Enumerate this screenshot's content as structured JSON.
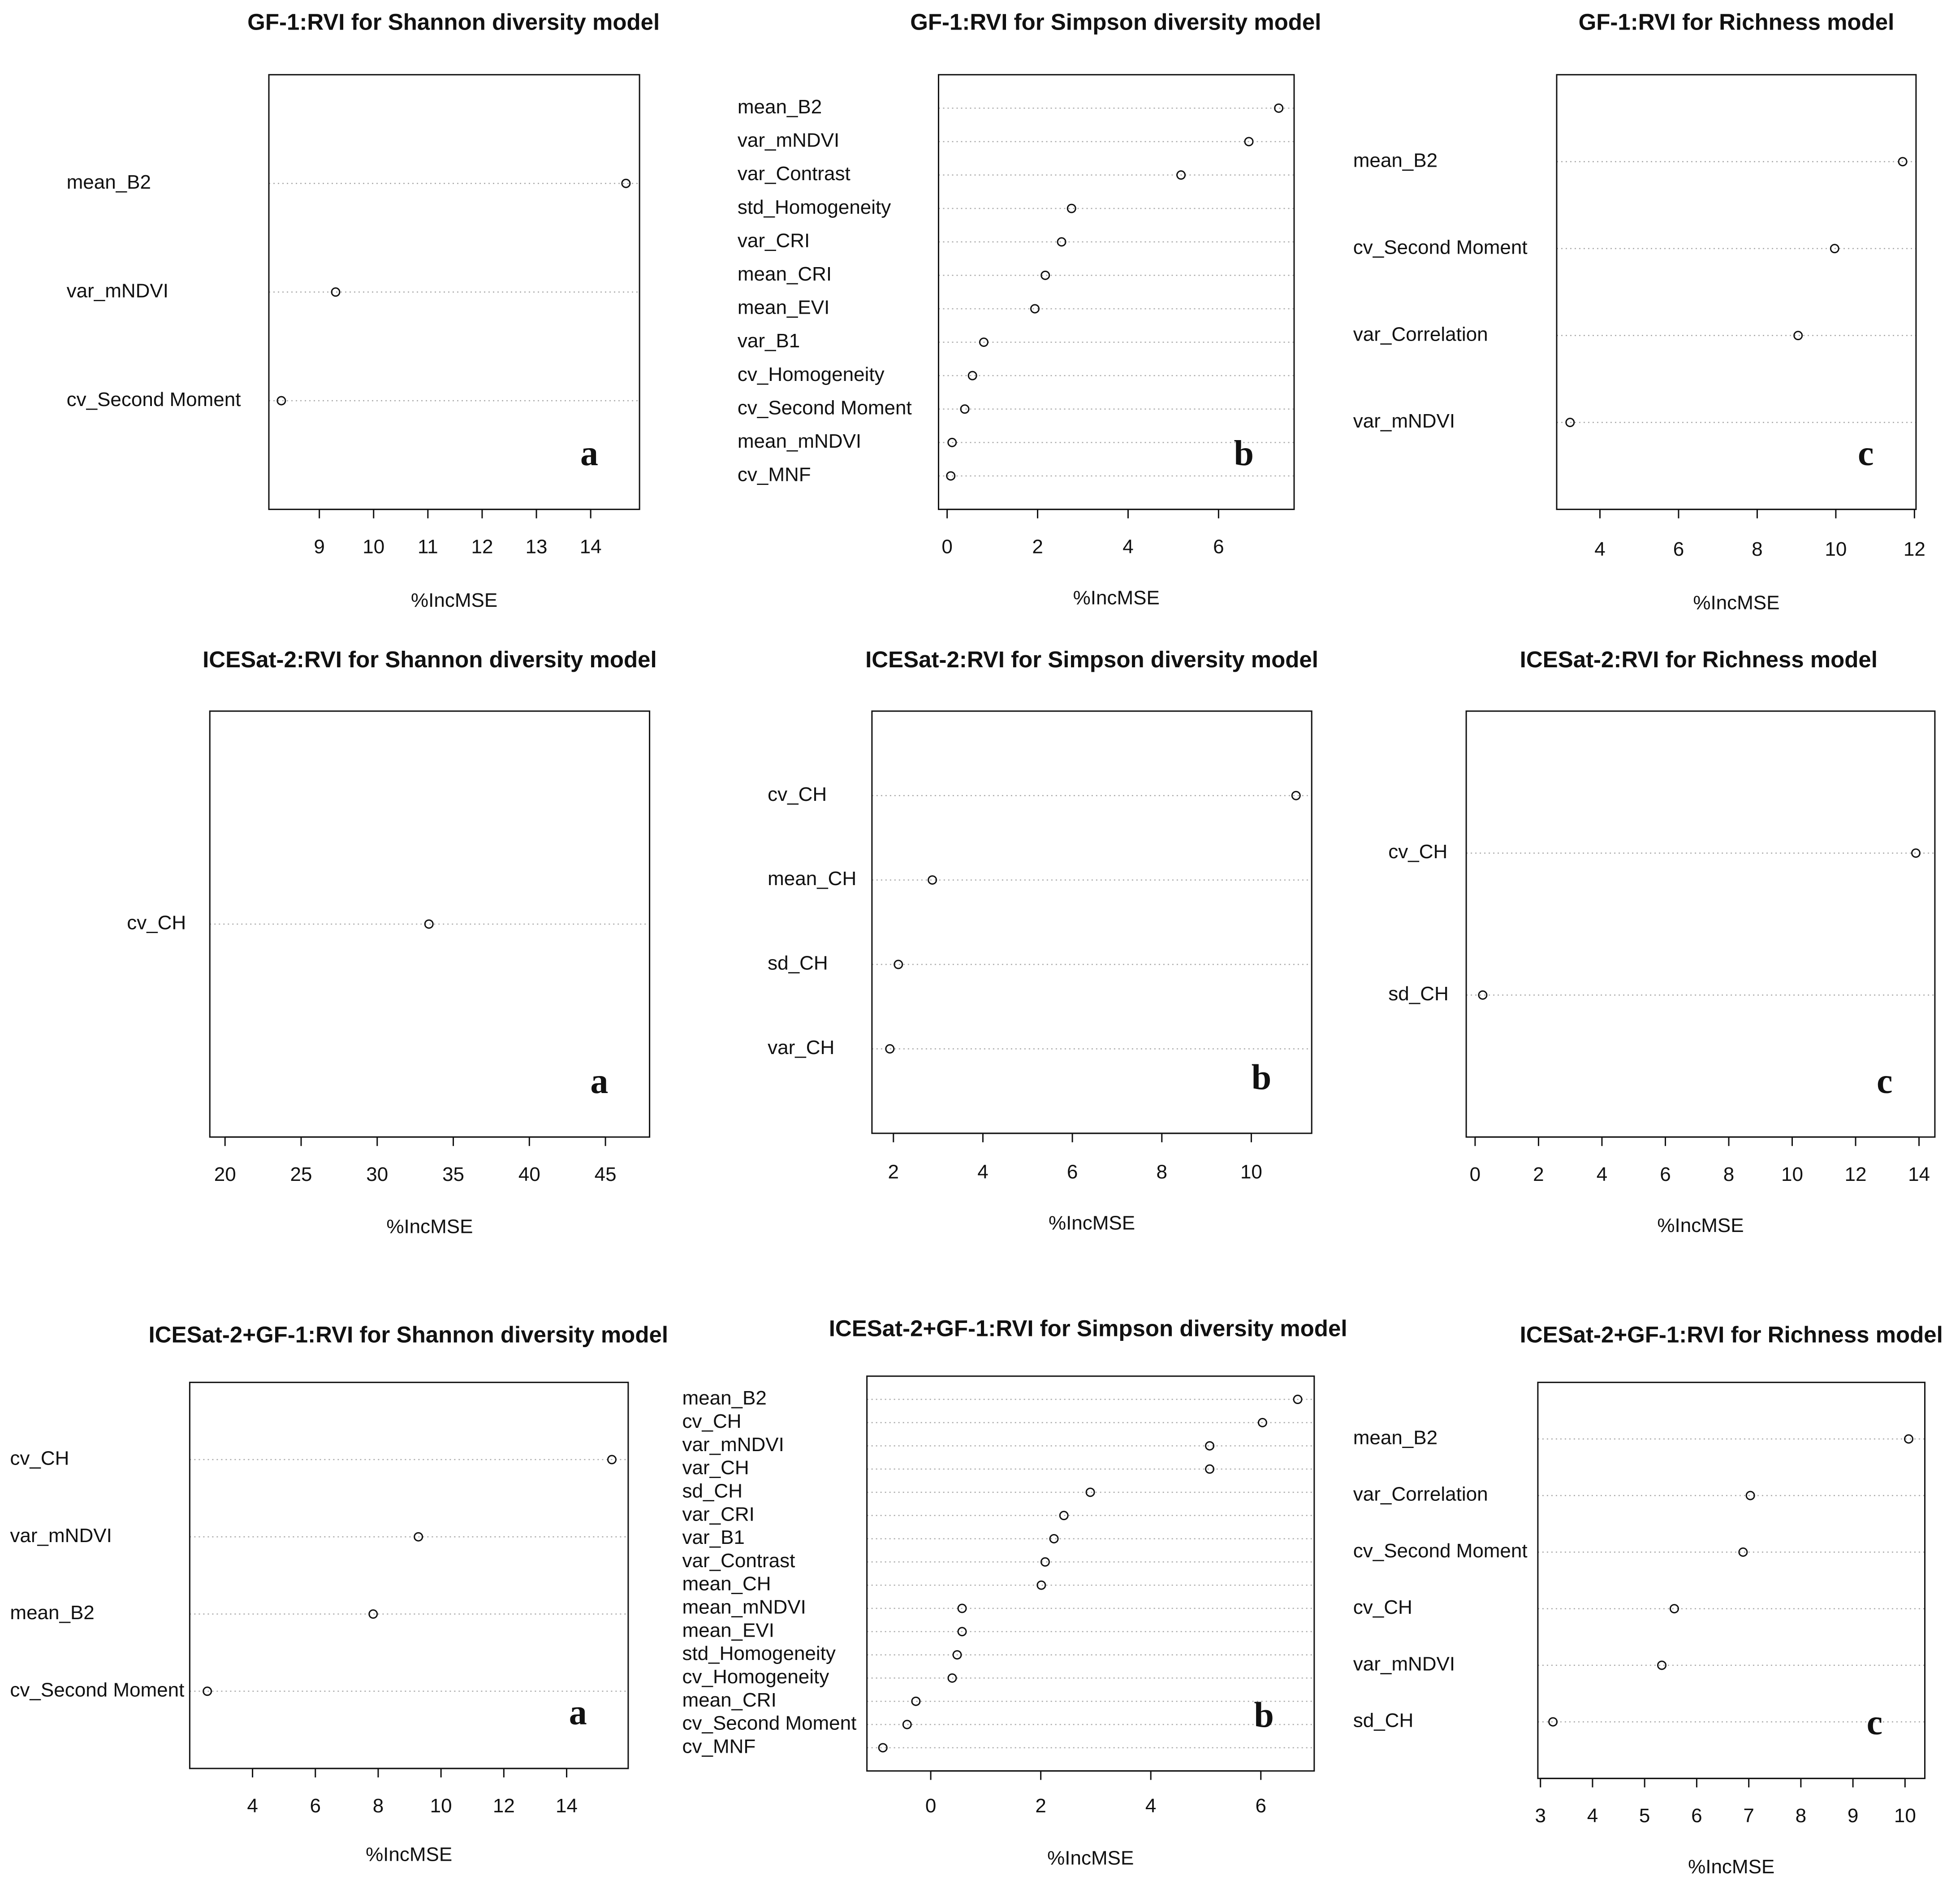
{
  "chart_data": [
    {
      "type": "dot",
      "title": "GF-1:RVI for Shannon diversity model",
      "annotation": "a",
      "xlabel": "%IncMSE",
      "categories": [
        "mean_B2",
        "var_mNDVI",
        "cv_Second Moment"
      ],
      "values": [
        14.65,
        9.3,
        8.3
      ],
      "xlim": [
        8.07,
        14.9
      ],
      "xticks": [
        9,
        10,
        11,
        12,
        13,
        14
      ]
    },
    {
      "type": "dot",
      "title": "GF-1:RVI for Simpson diversity model",
      "annotation": "b",
      "xlabel": "%IncMSE",
      "categories": [
        "mean_B2",
        "var_mNDVI",
        "var_Contrast",
        "std_Homogeneity",
        "var_CRI",
        "mean_CRI",
        "mean_EVI",
        "var_B1",
        "cv_Homogeneity",
        "cv_Second Moment",
        "mean_mNDVI",
        "cv_MNF"
      ],
      "values": [
        7.33,
        6.67,
        5.17,
        2.75,
        2.53,
        2.17,
        1.94,
        0.81,
        0.56,
        0.39,
        0.11,
        0.08
      ],
      "xlim": [
        -0.19,
        7.67
      ],
      "xticks": [
        0,
        2,
        4,
        6
      ]
    },
    {
      "type": "dot",
      "title": "GF-1:RVI for Richness model",
      "annotation": "c",
      "xlabel": "%IncMSE",
      "categories": [
        "mean_B2",
        "cv_Second Moment",
        "var_Correlation",
        "var_mNDVI"
      ],
      "values": [
        11.7,
        9.97,
        9.04,
        3.24
      ],
      "xlim": [
        2.9,
        12.04
      ],
      "xticks": [
        4,
        6,
        8,
        10,
        12
      ]
    },
    {
      "type": "dot",
      "title": "ICESat-2:RVI for Shannon diversity model",
      "annotation": "a",
      "xlabel": "%IncMSE",
      "categories": [
        "cv_CH"
      ],
      "values": [
        33.4
      ],
      "xlim": [
        19,
        47.9
      ],
      "xticks": [
        20,
        25,
        30,
        35,
        40,
        45
      ]
    },
    {
      "type": "dot",
      "title": "ICESat-2:RVI for Simpson diversity model",
      "annotation": "b",
      "xlabel": "%IncMSE",
      "categories": [
        "cv_CH",
        "mean_CH",
        "sd_CH",
        "var_CH"
      ],
      "values": [
        11.0,
        2.87,
        2.11,
        1.92
      ],
      "xlim": [
        1.52,
        11.35
      ],
      "xticks": [
        2,
        4,
        6,
        8,
        10
      ]
    },
    {
      "type": "dot",
      "title": "ICESat-2:RVI for Richness model",
      "annotation": "c",
      "xlabel": "%IncMSE",
      "categories": [
        "cv_CH",
        "sd_CH"
      ],
      "values": [
        13.9,
        0.24
      ],
      "xlim": [
        -0.28,
        14.5
      ],
      "xticks": [
        0,
        2,
        4,
        6,
        8,
        10,
        12,
        14
      ]
    },
    {
      "type": "dot",
      "title": "ICESat-2+GF-1:RVI for Shannon diversity model",
      "annotation": "a",
      "xlabel": "%IncMSE",
      "categories": [
        "cv_CH",
        "var_mNDVI",
        "mean_B2",
        "cv_Second Moment"
      ],
      "values": [
        15.44,
        9.28,
        7.84,
        2.56
      ],
      "xlim": [
        2,
        15.96
      ],
      "xticks": [
        4,
        6,
        8,
        10,
        12,
        14
      ]
    },
    {
      "type": "dot",
      "title": "ICESat-2+GF-1:RVI for Simpson diversity model",
      "annotation": "b",
      "xlabel": "%IncMSE",
      "categories": [
        "mean_B2",
        "cv_CH",
        "var_mNDVI",
        "var_CH",
        "sd_CH",
        "var_CRI",
        "var_B1",
        "var_Contrast",
        "mean_CH",
        "mean_mNDVI",
        "mean_EVI",
        "std_Homogeneity",
        "cv_Homogeneity",
        "mean_CRI",
        "cv_Second Moment",
        "cv_MNF"
      ],
      "values": [
        6.67,
        6.03,
        5.07,
        5.07,
        2.9,
        2.42,
        2.24,
        2.08,
        2.01,
        0.57,
        0.57,
        0.48,
        0.39,
        -0.27,
        -0.43,
        -0.87
      ],
      "xlim": [
        -1.16,
        6.97
      ],
      "xticks": [
        0,
        2,
        4,
        6
      ]
    },
    {
      "type": "dot",
      "title": "ICESat-2+GF-1:RVI for Richness model",
      "annotation": "c",
      "xlabel": "%IncMSE",
      "categories": [
        "mean_B2",
        "var_Correlation",
        "cv_Second Moment",
        "cv_CH",
        "var_mNDVI",
        "sd_CH"
      ],
      "values": [
        10.07,
        7.03,
        6.89,
        5.57,
        5.33,
        3.24
      ],
      "xlim": [
        2.95,
        10.38
      ],
      "xticks": [
        3,
        4,
        5,
        6,
        7,
        8,
        9,
        10
      ]
    }
  ]
}
